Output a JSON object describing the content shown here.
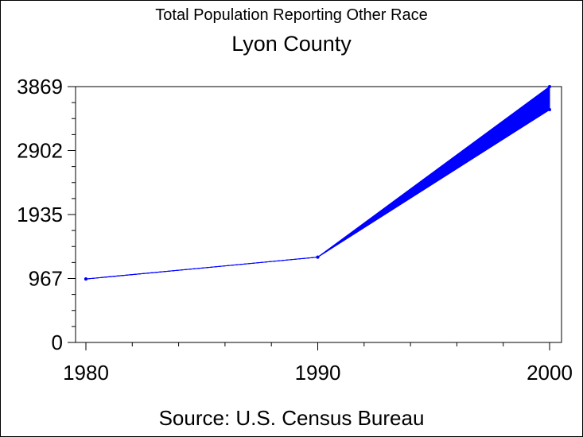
{
  "chart_data": {
    "type": "line",
    "title": "Total Population Reporting Other Race",
    "subtitle": "Lyon County",
    "source": "Source: U.S. Census Bureau",
    "xlabel": "",
    "ylabel": "",
    "x": [
      1980,
      1990,
      2000
    ],
    "x_ticks": [
      "1980",
      "1990",
      "2000"
    ],
    "y_ticks": [
      "0",
      "967",
      "1935",
      "2902",
      "3869"
    ],
    "ylim": [
      0,
      3869
    ],
    "xlim": [
      1980,
      2000
    ],
    "series": [
      {
        "values": [
          960,
          1290,
          3520
        ],
        "color": "#0000ff"
      },
      {
        "values": [
          960,
          1290,
          3869
        ],
        "color": "#0000ff"
      }
    ],
    "fill_between": true,
    "grid": false,
    "legend": "none"
  }
}
